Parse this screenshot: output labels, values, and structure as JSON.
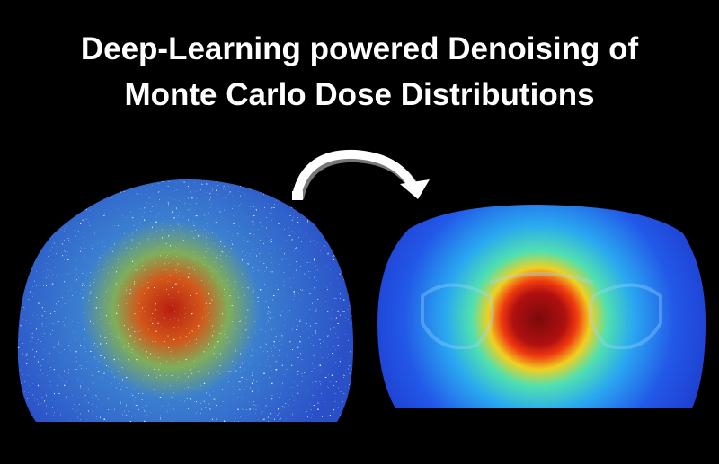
{
  "title": {
    "line1": "Deep-Learning powered Denoising of",
    "line2": "Monte Carlo Dose Distributions"
  }
}
